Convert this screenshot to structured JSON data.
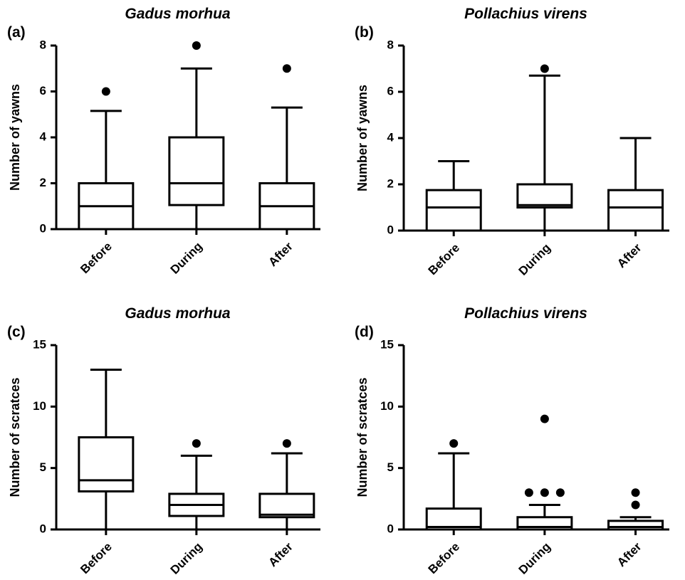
{
  "chart_data": [
    {
      "type": "box",
      "panel_label": "(a)",
      "title": "Gadus morhua",
      "ylabel": "Number of yawns",
      "categories": [
        "Before",
        "During",
        "After"
      ],
      "boxes": [
        {
          "min": 0,
          "q1": 0,
          "median": 1,
          "q3": 2,
          "max": 5.15,
          "outliers": [
            6
          ]
        },
        {
          "min": 0,
          "q1": 1.05,
          "median": 2,
          "q3": 4,
          "max": 7,
          "outliers": [
            8
          ]
        },
        {
          "min": 0,
          "q1": 0,
          "median": 1,
          "q3": 2,
          "max": 5.3,
          "outliers": [
            7
          ]
        }
      ],
      "ylim": [
        0,
        8
      ],
      "yticks": [
        0,
        2,
        4,
        6,
        8
      ]
    },
    {
      "type": "box",
      "panel_label": "(b)",
      "title": "Pollachius virens",
      "ylabel": "Number of yawns",
      "categories": [
        "Before",
        "During",
        "After"
      ],
      "boxes": [
        {
          "min": 0,
          "q1": 0,
          "median": 1,
          "q3": 1.75,
          "max": 3,
          "outliers": []
        },
        {
          "min": 0,
          "q1": 1,
          "median": 1.1,
          "q3": 2,
          "max": 6.7,
          "outliers": [
            7
          ]
        },
        {
          "min": 0,
          "q1": 0,
          "median": 1,
          "q3": 1.75,
          "max": 4,
          "outliers": []
        }
      ],
      "ylim": [
        0,
        8
      ],
      "yticks": [
        0,
        2,
        4,
        6,
        8
      ]
    },
    {
      "type": "box",
      "panel_label": "(c)",
      "title": "Gadus morhua",
      "ylabel": "Number of scratces",
      "categories": [
        "Before",
        "During",
        "After"
      ],
      "boxes": [
        {
          "min": 0,
          "q1": 3.1,
          "median": 4,
          "q3": 7.5,
          "max": 13,
          "outliers": []
        },
        {
          "min": 0,
          "q1": 1.1,
          "median": 2,
          "q3": 2.9,
          "max": 6,
          "outliers": [
            7
          ]
        },
        {
          "min": 0,
          "q1": 1,
          "median": 1.2,
          "q3": 2.9,
          "max": 6.2,
          "outliers": [
            7
          ]
        }
      ],
      "ylim": [
        0,
        15
      ],
      "yticks": [
        0,
        5,
        10,
        15
      ]
    },
    {
      "type": "box",
      "panel_label": "(d)",
      "title": "Pollachius virens",
      "ylabel": "Number of scratces",
      "categories": [
        "Before",
        "During",
        "After"
      ],
      "boxes": [
        {
          "min": 0,
          "q1": 0,
          "median": 0.2,
          "q3": 1.7,
          "max": 6.2,
          "outliers": [
            7
          ]
        },
        {
          "min": 0,
          "q1": 0,
          "median": 0.2,
          "q3": 1,
          "max": 2,
          "outliers": [
            3,
            3,
            3,
            9
          ]
        },
        {
          "min": 0,
          "q1": 0,
          "median": 0.2,
          "q3": 0.7,
          "max": 1,
          "outliers": [
            2,
            3
          ]
        }
      ],
      "ylim": [
        0,
        15
      ],
      "yticks": [
        0,
        5,
        10,
        15
      ]
    }
  ]
}
